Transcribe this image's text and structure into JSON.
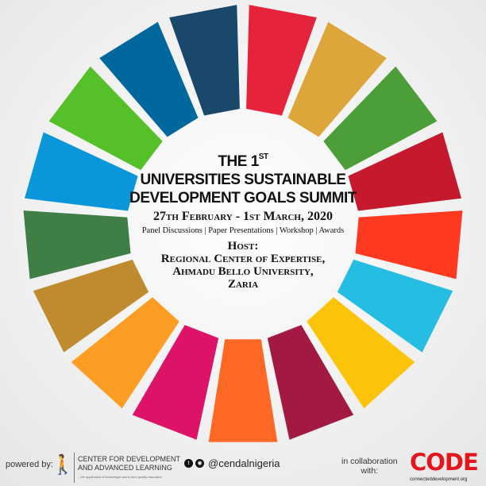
{
  "wheel": {
    "colors": [
      "#E5243B",
      "#DDA63A",
      "#4C9F38",
      "#C5192D",
      "#FF3A21",
      "#26BDE2",
      "#FCC30B",
      "#A21942",
      "#FD6925",
      "#DD1367",
      "#FD9D24",
      "#BF8B2E",
      "#3F7E44",
      "#0A97D9",
      "#56C02B",
      "#00689D",
      "#19486A"
    ]
  },
  "event": {
    "title_line1": "THE 1",
    "title_sup": "ST",
    "title_line2": "UNIVERSITIES SUSTAINABLE",
    "title_line3": "DEVELOPMENT GOALS SUMMIT",
    "dates": "27th February - 1st March, 2020",
    "activities": "Panel Discussions | Paper Presentations | Workshop | Awards",
    "host_label": "Host:",
    "host_line1": "Regional Center of Expertise,",
    "host_line2": "Ahmadu Bello University,",
    "host_line3": "Zaria"
  },
  "footer": {
    "powered_by": "powered by:",
    "org_line1": "CENTER FOR DEVELOPMENT",
    "org_line2": "AND ADVANCED LEARNING",
    "tagline": "...the application of knowledge stems from quality education",
    "social_icons": [
      "twitter-icon",
      "instagram-icon"
    ],
    "handle": "@cendalnigeria",
    "collab_line1": "in collaboration",
    "collab_line2": "with:",
    "partner_logo": "CODE",
    "partner_url": "connecteddevelopment.org"
  }
}
